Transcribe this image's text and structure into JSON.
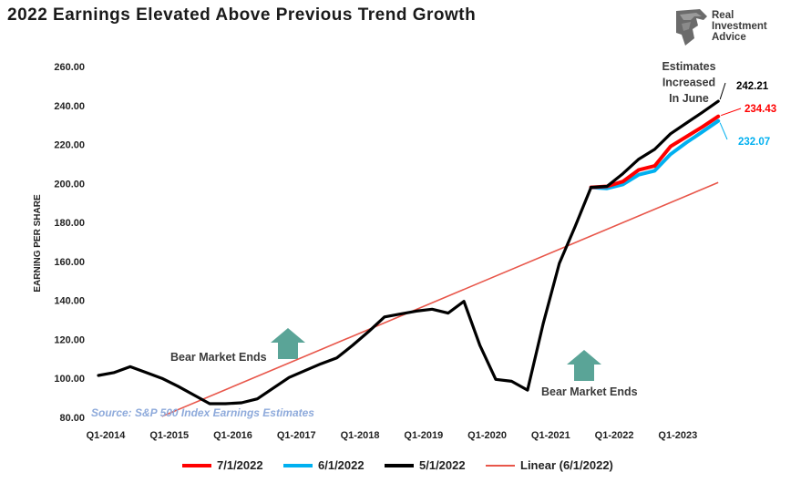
{
  "title": "2022 Earnings Elevated Above Previous Trend Growth",
  "logo": {
    "line1": "Real",
    "line2": "Investment",
    "line3": "Advice",
    "icon": "eagle-head-icon"
  },
  "colors": {
    "red": "#ff0000",
    "blue": "#00b0f0",
    "black": "#000000",
    "trend": "#e8564a",
    "arrow": "#5aa497",
    "source": "#8eaadb"
  },
  "chart_data": {
    "type": "line",
    "ylabel": "EARNING PER SHARE",
    "ylim": [
      80,
      260
    ],
    "yticks": [
      "80.00",
      "100.00",
      "120.00",
      "140.00",
      "160.00",
      "180.00",
      "200.00",
      "220.00",
      "240.00",
      "260.00"
    ],
    "xtick_labels": [
      "Q1-2014",
      "Q1-2015",
      "Q1-2016",
      "Q1-2017",
      "Q1-2018",
      "Q1-2019",
      "Q1-2020",
      "Q1-2021",
      "Q1-2022",
      "Q1-2023"
    ],
    "x": [
      "Q1-2014",
      "Q2-2014",
      "Q3-2014",
      "Q4-2014",
      "Q1-2015",
      "Q2-2015",
      "Q3-2015",
      "Q4-2015",
      "Q1-2016",
      "Q2-2016",
      "Q3-2016",
      "Q4-2016",
      "Q1-2017",
      "Q2-2017",
      "Q3-2017",
      "Q4-2017",
      "Q1-2018",
      "Q2-2018",
      "Q3-2018",
      "Q4-2018",
      "Q1-2019",
      "Q2-2019",
      "Q3-2019",
      "Q4-2019",
      "Q1-2020",
      "Q2-2020",
      "Q3-2020",
      "Q4-2020",
      "Q1-2021",
      "Q2-2021",
      "Q3-2021",
      "Q4-2021",
      "Q1-2022",
      "Q2-2022",
      "Q3-2022",
      "Q4-2022",
      "Q1-2023",
      "Q2-2023",
      "Q3-2023",
      "Q4-2023"
    ],
    "series": [
      {
        "name": "5/1/2022",
        "color": "#000000",
        "values": [
          101.5,
          103,
          106,
          103,
          100,
          96,
          91.5,
          87,
          87,
          87.5,
          89.5,
          95,
          100.5,
          104,
          107.5,
          110.5,
          117,
          124,
          131.5,
          133,
          134.5,
          135.5,
          133.5,
          139.5,
          117,
          99.5,
          98.5,
          94,
          128.5,
          159,
          178,
          198,
          198.5,
          205,
          212.5,
          217.5,
          225.5,
          231,
          236.5,
          242.21
        ]
      },
      {
        "name": "7/1/2022",
        "color": "#ff0000",
        "values": [
          null,
          null,
          null,
          null,
          null,
          null,
          null,
          null,
          null,
          null,
          null,
          null,
          null,
          null,
          null,
          null,
          null,
          null,
          null,
          null,
          null,
          null,
          null,
          null,
          null,
          null,
          null,
          null,
          null,
          null,
          null,
          198,
          198.5,
          201,
          207,
          209,
          219,
          224,
          229,
          234.43
        ]
      },
      {
        "name": "6/1/2022",
        "color": "#00b0f0",
        "values": [
          null,
          null,
          null,
          null,
          null,
          null,
          null,
          null,
          null,
          null,
          null,
          null,
          null,
          null,
          null,
          null,
          null,
          null,
          null,
          null,
          null,
          null,
          null,
          null,
          null,
          null,
          null,
          null,
          null,
          null,
          null,
          198,
          197.5,
          199.5,
          204.5,
          206.5,
          215,
          221,
          226.5,
          232.07
        ]
      }
    ],
    "trend": {
      "name": "Linear (6/1/2022)",
      "color": "#e8564a",
      "start": 80.5,
      "end": 200.5
    },
    "end_labels": [
      {
        "series": "5/1/2022",
        "text": "242.21",
        "color": "#000000"
      },
      {
        "series": "7/1/2022",
        "text": "234.43",
        "color": "#ff0000"
      },
      {
        "series": "6/1/2022",
        "text": "232.07",
        "color": "#00b0f0"
      }
    ],
    "annotations": {
      "estimates": [
        "Estimates",
        "Increased",
        "In June"
      ],
      "bear1": "Bear Market Ends",
      "bear2": "Bear Market Ends",
      "source": "Source: S&P 500 Index Earnings Estimates"
    },
    "legend": [
      "7/1/2022",
      "6/1/2022",
      "5/1/2022",
      "Linear (6/1/2022)"
    ],
    "legend_position": "bottom",
    "grid": false
  }
}
